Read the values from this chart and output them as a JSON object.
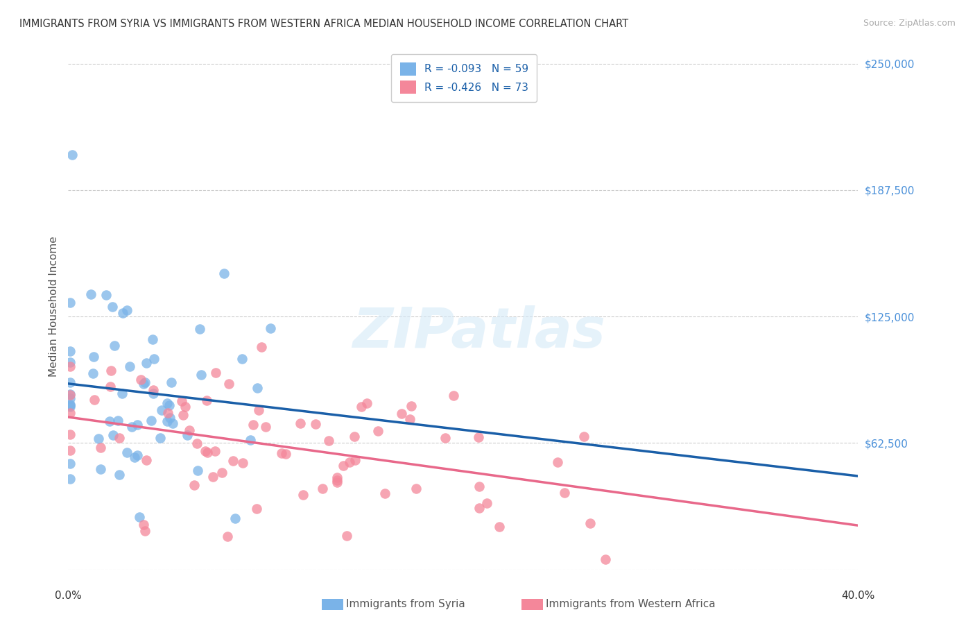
{
  "title": "IMMIGRANTS FROM SYRIA VS IMMIGRANTS FROM WESTERN AFRICA MEDIAN HOUSEHOLD INCOME CORRELATION CHART",
  "source": "Source: ZipAtlas.com",
  "ylabel": "Median Household Income",
  "ytick_values": [
    0,
    62500,
    125000,
    187500,
    250000
  ],
  "ytick_labels": [
    "",
    "$62,500",
    "$125,000",
    "$187,500",
    "$250,000"
  ],
  "ylim": [
    0,
    260000
  ],
  "xlim": [
    0.0,
    0.4
  ],
  "color_syria": "#7ab3e8",
  "color_wafrica": "#f4879a",
  "color_trendline_syria": "#1a5fa8",
  "color_trendline_wafrica": "#e8688a",
  "color_ytick": "#4a90d9",
  "watermark": "ZIPatlas",
  "legend_label_syria": "R = -0.093   N = 59",
  "legend_label_wafrica": "R = -0.426   N = 73",
  "bottom_legend_syria": "Immigrants from Syria",
  "bottom_legend_wafrica": "Immigrants from Western Africa"
}
